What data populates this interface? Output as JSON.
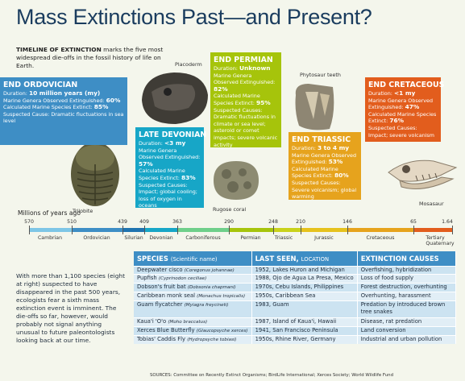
{
  "title": "Mass Extinctions Past—and Present?",
  "intro": {
    "lead": "TIMELINE OF EXTINCTION",
    "text": " marks the five most widespread die-offs in the fossil history of life on Earth."
  },
  "extinctions": [
    {
      "name": "END ORDOVICIAN",
      "lines": [
        {
          "label": "Duration: ",
          "value": "10 million years (my)"
        },
        {
          "label": "Marine Genera Observed Extinguished: ",
          "value": "60%"
        },
        {
          "label": "Calculated Marine Species Extinct: ",
          "value": "85%"
        },
        {
          "label": "Suspected Cause: ",
          "value": "Dramatic fluctuations in sea level"
        }
      ],
      "color": "#3e8ec5"
    },
    {
      "name": "LATE DEVONIAN",
      "lines": [
        {
          "label": "Duration: ",
          "value": "<3 my"
        },
        {
          "label": "Marine Genera Observed Extinguished: ",
          "value": "57%"
        },
        {
          "label": "Calculated Marine Species Extinct: ",
          "value": "83%"
        },
        {
          "label": "Suspected Causes: ",
          "value": "Impact; global cooling; loss of oxygen in oceans"
        }
      ],
      "color": "#17a6c7"
    },
    {
      "name": "END PERMIAN",
      "lines": [
        {
          "label": "Duration: ",
          "value": "Unknown"
        },
        {
          "label": "Marine Genera Observed Extinguished: ",
          "value": "82%"
        },
        {
          "label": "Calculated Marine Species Extinct: ",
          "value": "95%"
        },
        {
          "label": "Suspected Causes: ",
          "value": "Dramatic fluctuations in climate or sea level; asteroid or comet impacts; severe volcanic activity"
        }
      ],
      "color": "#a6c40b"
    },
    {
      "name": "END TRIASSIC",
      "lines": [
        {
          "label": "Duration: ",
          "value": "3 to 4 my"
        },
        {
          "label": "Marine Genera Observed Extinguished: ",
          "value": "53%"
        },
        {
          "label": "Calculated Marine Species Extinct: ",
          "value": "80%"
        },
        {
          "label": "Suspected Causes: ",
          "value": "Severe volcanism; global warming"
        }
      ],
      "color": "#e6a31d"
    },
    {
      "name": "END CRETACEOUS",
      "lines": [
        {
          "label": "Duration: ",
          "value": "<1 my"
        },
        {
          "label": "Marine Genera Observed Extinguished: ",
          "value": "47%"
        },
        {
          "label": "Calculated Marine Species Extinct: ",
          "value": "76%"
        },
        {
          "label": "Suspected Causes: ",
          "value": "Impact; severe volcanism"
        }
      ],
      "color": "#e25d1d"
    }
  ],
  "fossils": [
    "Trilobite",
    "Placoderm",
    "Rugose coral",
    "Phytosaur teeth",
    "Mosasaur"
  ],
  "timeline": {
    "unit_label": "Millions of years ago",
    "ticks": [
      "570",
      "510",
      "439",
      "409",
      "363",
      "290",
      "248",
      "210",
      "146",
      "65",
      "1.64"
    ],
    "periods": [
      "Cambrian",
      "Ordovician",
      "Silurian",
      "Devonian",
      "Carboniferous",
      "Permian",
      "Triassic",
      "Jurassic",
      "Cretaceous",
      "Tertiary",
      "Quaternary"
    ]
  },
  "side_text": "With more than 1,100 species (eight at right) suspected to have disappeared in the past 500 years, ecologists fear a sixth mass extinction event is imminent. The die-offs so far, however, would probably not signal anything unusual to future paleontologists looking back at our time.",
  "table": {
    "headers": {
      "species": "SPECIES",
      "species_sub": "(Scientific name)",
      "last_seen": "LAST SEEN,",
      "last_seen_sub": "LOCATION",
      "causes": "EXTINCTION CAUSES"
    },
    "rows": [
      {
        "species": "Deepwater cisco",
        "sci": "(Coregonus johannae)",
        "last_seen": "1952, Lakes Huron and Michigan",
        "cause": "Overfishing, hybridization"
      },
      {
        "species": "Pupfish",
        "sci": "(Cyprinodon ceciliae)",
        "last_seen": "1988, Ojo de Agua La Presa, Mexico",
        "cause": "Loss of food supply"
      },
      {
        "species": "Dobson's fruit bat",
        "sci": "(Dobsonia chapmani)",
        "last_seen": "1970s, Cebu Islands, Philippines",
        "cause": "Forest destruction, overhunting"
      },
      {
        "species": "Caribbean monk seal",
        "sci": "(Monachus tropicalis)",
        "last_seen": "1950s, Caribbean Sea",
        "cause": "Overhunting, harassment"
      },
      {
        "species": "Guam flycatcher",
        "sci": "(Myiagra freycineti)",
        "last_seen": "1983, Guam",
        "cause": "Predation by introduced brown tree snakes"
      },
      {
        "species": "Kaua'i 'O'o",
        "sci": "(Moho braccatus)",
        "last_seen": "1987, Island of Kaua'i, Hawaii",
        "cause": "Disease, rat predation"
      },
      {
        "species": "Xerces Blue Butterfly",
        "sci": "(Glaucopsyche xerces)",
        "last_seen": "1941, San Francisco Peninsula",
        "cause": "Land conversion"
      },
      {
        "species": "Tobias' Caddis Fly",
        "sci": "(Hydropsyche tobiasi)",
        "last_seen": "1950s, Rhine River, Germany",
        "cause": "Industrial and urban pollution"
      }
    ]
  },
  "sources": "SOURCES: Committee on Recently Extinct Organisms; BirdLife International; Xerces Society; World Wildlife Fund"
}
